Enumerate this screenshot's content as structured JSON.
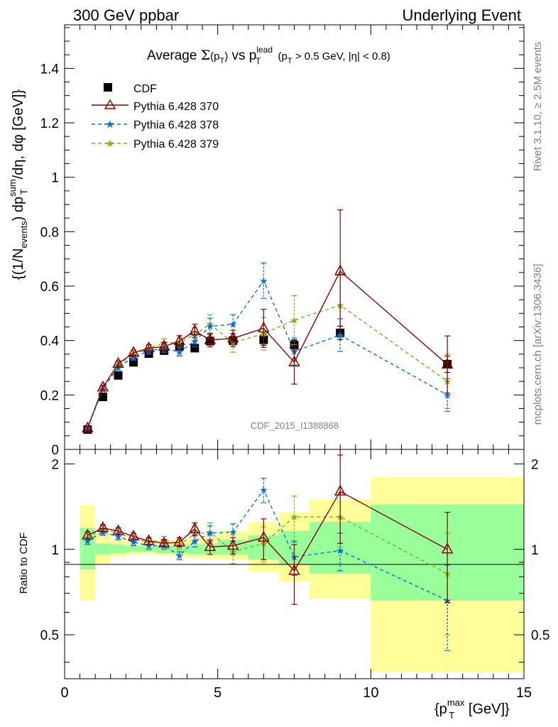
{
  "header": {
    "left": "300 GeV ppbar",
    "right": "Underlying Event"
  },
  "side_labels": {
    "rivet": "Rivet 3.1.10, ≥ 2.5M events",
    "mcplots": "mcplots.cern.ch [arXiv:1306.3436]"
  },
  "chart_data": [
    {
      "type": "scatter",
      "title_parts": {
        "prefix": "Average ",
        "sigma": "Σ",
        "sigma_arg": "(p",
        "sigma_sub": "T",
        "sigma_close": ")",
        "vs": " vs p",
        "vs_sup": "lead",
        "vs_sub": "T",
        "cut": " (p",
        "cut_sub": "T",
        "cut_rest": " > 0.5 GeV, |η| < 0.8)"
      },
      "ylabel_text": "{(1/N_events) dp_T^sum/dη, dφ [GeV]}",
      "ylabel_parts": {
        "a": "{(1/N",
        "a_sub": "events",
        "b": ") dp",
        "b_sup": "sum",
        "b_sub": "T",
        "c": "/dη, dφ [GeV]}"
      },
      "watermark": "CDF_2015_I1388868",
      "xlim": [
        0,
        15
      ],
      "ylim": [
        0,
        1.56
      ],
      "yticks": [
        0,
        0.2,
        0.4,
        0.6,
        0.8,
        1,
        1.2,
        1.4
      ],
      "ytick_labels": [
        "0",
        "0.2",
        "0.4",
        "0.6",
        "0.8",
        "1",
        "1.2",
        "1.4"
      ],
      "legend_position": "top-left",
      "series": [
        {
          "name": "CDF",
          "color": "#000000",
          "marker": "square",
          "style": "none",
          "x": [
            0.75,
            1.25,
            1.75,
            2.25,
            2.75,
            3.25,
            3.75,
            4.25,
            4.75,
            5.5,
            6.5,
            7.5,
            9.0,
            12.5
          ],
          "y": [
            0.073,
            0.193,
            0.272,
            0.32,
            0.352,
            0.363,
            0.378,
            0.372,
            0.398,
            0.4,
            0.403,
            0.383,
            0.428,
            0.313
          ],
          "err": [
            0.005,
            0.006,
            0.008,
            0.009,
            0.01,
            0.011,
            0.012,
            0.013,
            0.014,
            0.015,
            0.02,
            0.02,
            0.025,
            0.03
          ]
        },
        {
          "name": "Pythia 6.428 370",
          "color": "#8b0000",
          "marker": "triangle",
          "style": "solid",
          "x": [
            0.75,
            1.25,
            1.75,
            2.25,
            2.75,
            3.25,
            3.75,
            4.25,
            4.75,
            5.5,
            6.5,
            7.5,
            9.0,
            12.5
          ],
          "y": [
            0.078,
            0.228,
            0.315,
            0.355,
            0.372,
            0.378,
            0.398,
            0.435,
            0.402,
            0.408,
            0.445,
            0.32,
            0.655,
            0.312
          ],
          "err": [
            0.004,
            0.008,
            0.01,
            0.01,
            0.012,
            0.015,
            0.02,
            0.025,
            0.025,
            0.03,
            0.07,
            0.08,
            0.225,
            0.105
          ]
        },
        {
          "name": "Pythia 6.428 378",
          "color": "#0a6fd6",
          "marker": "star",
          "style": "dashed",
          "x": [
            0.75,
            1.25,
            1.75,
            2.25,
            2.75,
            3.25,
            3.75,
            4.25,
            4.75,
            5.5,
            6.5,
            7.5,
            9.0,
            12.5
          ],
          "y": [
            0.078,
            0.222,
            0.302,
            0.338,
            0.362,
            0.372,
            0.358,
            0.398,
            0.452,
            0.46,
            0.62,
            0.36,
            0.42,
            0.2
          ],
          "err": [
            0.004,
            0.008,
            0.01,
            0.01,
            0.012,
            0.015,
            0.015,
            0.02,
            0.03,
            0.035,
            0.065,
            0.05,
            0.06,
            0.06
          ]
        },
        {
          "name": "Pythia 6.428 379",
          "color": "#7cb518",
          "marker": "star",
          "style": "dashed",
          "x": [
            0.75,
            1.25,
            1.75,
            2.25,
            2.75,
            3.25,
            3.75,
            4.25,
            4.75,
            5.5,
            6.5,
            7.5,
            9.0,
            12.5
          ],
          "y": [
            0.08,
            0.228,
            0.31,
            0.348,
            0.372,
            0.392,
            0.392,
            0.422,
            0.46,
            0.392,
            0.425,
            0.475,
            0.53,
            0.25
          ],
          "err": [
            0.004,
            0.008,
            0.01,
            0.01,
            0.012,
            0.015,
            0.015,
            0.025,
            0.035,
            0.035,
            0.06,
            0.09,
            0.11,
            0.1
          ]
        }
      ]
    },
    {
      "type": "scatter",
      "ylabel": "Ratio to CDF",
      "xlabel_text": "{p_T^max [GeV]}",
      "xlabel_parts": {
        "a": "{p",
        "a_sup": "max",
        "a_sub": "T",
        "b": " [GeV]}"
      },
      "xlim": [
        0,
        15
      ],
      "ylim": [
        0.35,
        2.25
      ],
      "xticks": [
        0,
        5,
        10,
        15
      ],
      "xtick_labels": [
        "0",
        "5",
        "10",
        "15"
      ],
      "yticks": [
        0.5,
        1,
        2
      ],
      "ytick_labels": [
        "0.5",
        "1",
        "2"
      ],
      "bands": {
        "bins": [
          [
            0.5,
            1.0
          ],
          [
            1.0,
            1.5
          ],
          [
            1.5,
            2.0
          ],
          [
            2.0,
            2.5
          ],
          [
            2.5,
            3.0
          ],
          [
            3.0,
            3.5
          ],
          [
            3.5,
            4.0
          ],
          [
            4.0,
            4.5
          ],
          [
            4.5,
            5.0
          ],
          [
            5.0,
            6.0
          ],
          [
            6.0,
            7.0
          ],
          [
            7.0,
            8.0
          ],
          [
            8.0,
            10.0
          ],
          [
            10.0,
            15.0
          ]
        ],
        "yellow_low": [
          0.66,
          0.89,
          0.94,
          0.96,
          0.96,
          0.95,
          0.94,
          0.93,
          0.92,
          0.92,
          0.83,
          0.77,
          0.67,
          0.37
        ],
        "yellow_high": [
          1.43,
          1.15,
          1.09,
          1.06,
          1.06,
          1.07,
          1.08,
          1.09,
          1.11,
          1.16,
          1.25,
          1.35,
          1.5,
          1.8
        ],
        "green_low": [
          0.85,
          0.96,
          0.97,
          0.98,
          0.98,
          0.97,
          0.97,
          0.96,
          0.96,
          0.96,
          0.92,
          0.88,
          0.82,
          0.66
        ],
        "green_high": [
          1.19,
          1.05,
          1.04,
          1.03,
          1.03,
          1.03,
          1.04,
          1.04,
          1.05,
          1.08,
          1.12,
          1.16,
          1.25,
          1.44
        ],
        "yellow_color": "#ffff99",
        "green_color": "#99ff99"
      },
      "series": [
        {
          "name": "Pythia 6.428 370",
          "color": "#8b0000",
          "marker": "triangle",
          "style": "solid",
          "x": [
            0.75,
            1.25,
            1.75,
            2.25,
            2.75,
            3.25,
            3.75,
            4.25,
            4.75,
            5.5,
            6.5,
            7.5,
            9.0,
            12.5
          ],
          "y": [
            1.12,
            1.19,
            1.16,
            1.11,
            1.07,
            1.05,
            1.06,
            1.18,
            1.02,
            1.03,
            1.1,
            0.84,
            1.6,
            1.0
          ],
          "err": [
            0.03,
            0.03,
            0.03,
            0.03,
            0.03,
            0.03,
            0.04,
            0.06,
            0.06,
            0.07,
            0.18,
            0.2,
            0.55,
            0.35
          ]
        },
        {
          "name": "Pythia 6.428 378",
          "color": "#0a6fd6",
          "marker": "star",
          "style": "dashed",
          "x": [
            0.75,
            1.25,
            1.75,
            2.25,
            2.75,
            3.25,
            3.75,
            4.25,
            4.75,
            5.5,
            6.5,
            7.5,
            9.0,
            12.5
          ],
          "y": [
            1.07,
            1.15,
            1.11,
            1.06,
            1.03,
            1.03,
            0.95,
            1.07,
            1.14,
            1.15,
            1.62,
            0.94,
            0.99,
            0.66
          ],
          "err": [
            0.03,
            0.03,
            0.03,
            0.03,
            0.03,
            0.03,
            0.03,
            0.05,
            0.07,
            0.08,
            0.16,
            0.13,
            0.15,
            0.22
          ]
        },
        {
          "name": "Pythia 6.428 379",
          "color": "#7cb518",
          "marker": "star",
          "style": "dashed",
          "x": [
            0.75,
            1.25,
            1.75,
            2.25,
            2.75,
            3.25,
            3.75,
            4.25,
            4.75,
            5.5,
            6.5,
            7.5,
            9.0,
            12.5
          ],
          "y": [
            1.1,
            1.18,
            1.14,
            1.09,
            1.06,
            1.08,
            1.04,
            1.13,
            1.15,
            0.98,
            1.05,
            1.3,
            1.3,
            0.82
          ],
          "err": [
            0.03,
            0.03,
            0.03,
            0.03,
            0.03,
            0.03,
            0.04,
            0.07,
            0.09,
            0.09,
            0.15,
            0.24,
            0.28,
            0.32
          ]
        }
      ]
    }
  ]
}
